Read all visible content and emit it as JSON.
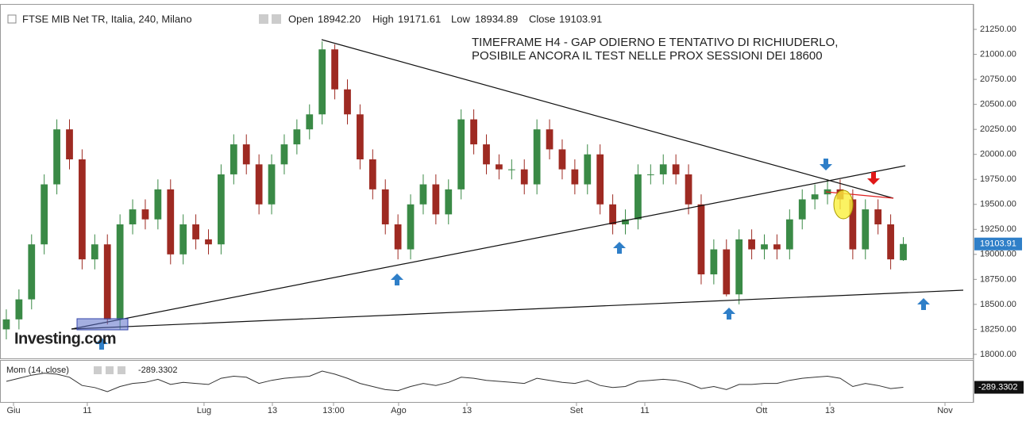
{
  "chart_data": {
    "type": "candlestick",
    "title": "FTSE MIB Net TR, Italia, 240, Milano",
    "header_labels": {
      "open": "Open",
      "high": "High",
      "low": "Low",
      "close": "Close"
    },
    "last_labels": {
      "open": "18942.20",
      "high": "19171.61",
      "low": "18934.89",
      "close": "19103.91"
    },
    "annotation": [
      "TIMEFRAME H4 - GAP ODIERNO E TENTATIVO DI RICHIUDERLO,",
      "POSIBILE ANCORA IL TEST NELLE PROX SESSIONI DEI 18600"
    ],
    "watermark": "Investing.com",
    "up_color": "#3a8a46",
    "down_color": "#9e2a22",
    "open": [
      18250,
      18350,
      18550,
      19100,
      19700,
      20250,
      19950,
      18950,
      19100,
      18350,
      19300,
      19450,
      19350,
      19650,
      19000,
      19300,
      19150,
      19100,
      19800,
      20100,
      19900,
      19500,
      19900,
      20100,
      20250,
      20400,
      21050,
      20650,
      20400,
      19950,
      19650,
      19300,
      19050,
      19500,
      19700,
      19400,
      19650,
      20350,
      20100,
      19900,
      19850,
      19850,
      19700,
      20250,
      20050,
      19850,
      19700,
      20000,
      19500,
      19300,
      19350,
      19800,
      19800,
      19900,
      19800,
      19500,
      18800,
      19050,
      18600,
      19150,
      19050,
      19100,
      19050,
      19350,
      19550,
      19600,
      19650,
      19550,
      19050,
      19450,
      19300,
      18942.2
    ],
    "high": [
      18450,
      18650,
      19200,
      19800,
      20350,
      20350,
      20050,
      19200,
      19200,
      19400,
      19550,
      19550,
      19750,
      19750,
      19400,
      19400,
      19250,
      19900,
      20200,
      20200,
      20000,
      20000,
      20200,
      20350,
      20500,
      21130,
      21100,
      20750,
      20500,
      20050,
      19750,
      19400,
      19600,
      19800,
      19800,
      19750,
      20450,
      20450,
      20200,
      20000,
      19950,
      19950,
      20350,
      20350,
      20150,
      19950,
      20100,
      20100,
      19600,
      19450,
      19900,
      19900,
      20000,
      20000,
      19900,
      19600,
      19150,
      19150,
      19250,
      19250,
      19200,
      19200,
      19450,
      19650,
      19700,
      19750,
      19750,
      19650,
      19550,
      19550,
      19400,
      19171.61
    ],
    "low": [
      18150,
      18250,
      18450,
      19000,
      19600,
      19850,
      18850,
      18850,
      18300,
      18250,
      19200,
      19250,
      19250,
      18900,
      18900,
      19050,
      19000,
      19000,
      19700,
      19800,
      19400,
      19400,
      19800,
      20000,
      20150,
      20300,
      20550,
      20300,
      19850,
      19550,
      19200,
      18950,
      18950,
      19400,
      19300,
      19300,
      19550,
      20000,
      19800,
      19750,
      19750,
      19600,
      19600,
      19950,
      19750,
      19600,
      19600,
      19400,
      19200,
      19200,
      19250,
      19700,
      19700,
      19700,
      19400,
      18700,
      18700,
      18580,
      18500,
      18950,
      18950,
      18950,
      18950,
      19250,
      19450,
      19500,
      19450,
      18950,
      18950,
      19200,
      18850,
      18934.89
    ],
    "close": [
      18350,
      18550,
      19100,
      19700,
      20250,
      19950,
      18950,
      19100,
      18350,
      19300,
      19450,
      19350,
      19650,
      19000,
      19300,
      19150,
      19100,
      19800,
      20100,
      19900,
      19500,
      19900,
      20100,
      20250,
      20400,
      21050,
      20650,
      20400,
      19950,
      19650,
      19300,
      19050,
      19500,
      19700,
      19400,
      19650,
      20350,
      20100,
      19900,
      19850,
      19850,
      19700,
      20250,
      20050,
      19850,
      19700,
      20000,
      19500,
      19300,
      19350,
      19800,
      19800,
      19900,
      19800,
      19500,
      18800,
      19050,
      18600,
      19150,
      19050,
      19100,
      19050,
      19350,
      19550,
      19600,
      19650,
      19550,
      19050,
      19450,
      19300,
      18950,
      19103.91
    ],
    "xlim": [
      -0.5,
      76.5
    ],
    "xticks": [
      {
        "value": 0.57,
        "label": "Giu"
      },
      {
        "value": 6.41,
        "label": "11"
      },
      {
        "value": 15.65,
        "label": "Lug"
      },
      {
        "value": 21.06,
        "label": "13"
      },
      {
        "value": 25.9,
        "label": "13:00"
      },
      {
        "value": 31.05,
        "label": "Ago"
      },
      {
        "value": 36.46,
        "label": "13"
      },
      {
        "value": 45.13,
        "label": "Set"
      },
      {
        "value": 50.54,
        "label": "11"
      },
      {
        "value": 59.78,
        "label": "Ott"
      },
      {
        "value": 65.19,
        "label": "13"
      },
      {
        "value": 74.3,
        "label": "Nov"
      }
    ],
    "ylim": [
      17960,
      21504
    ],
    "yticks": [
      {
        "value": 18000,
        "label": "18000.00"
      },
      {
        "value": 18250,
        "label": "18250.00"
      },
      {
        "value": 18500,
        "label": "18500.00"
      },
      {
        "value": 18750,
        "label": "18750.00"
      },
      {
        "value": 19000,
        "label": "19000.00"
      },
      {
        "value": 19250,
        "label": "19250.00"
      },
      {
        "value": 19500,
        "label": "19500.00"
      },
      {
        "value": 19750,
        "label": "19750.00"
      },
      {
        "value": 20000,
        "label": "20000.00"
      },
      {
        "value": 20250,
        "label": "20250.00"
      },
      {
        "value": 20500,
        "label": "20500.00"
      },
      {
        "value": 20750,
        "label": "20750.00"
      },
      {
        "value": 21000,
        "label": "21000.00"
      },
      {
        "value": 21250,
        "label": "21250.00"
      }
    ],
    "momentum": {
      "name": "Mom (14, close)",
      "color": "#333333",
      "ylim": [
        -1000,
        1000
      ],
      "values": [
        0,
        150,
        300,
        400,
        350,
        200,
        -200,
        -300,
        -500,
        -250,
        -100,
        -50,
        100,
        -150,
        -50,
        -100,
        -150,
        150,
        250,
        200,
        -100,
        50,
        150,
        200,
        250,
        500,
        350,
        150,
        -100,
        -250,
        -400,
        -450,
        -250,
        -100,
        -200,
        -50,
        200,
        150,
        50,
        0,
        -50,
        -100,
        150,
        50,
        -50,
        -100,
        50,
        -200,
        -300,
        -250,
        0,
        50,
        100,
        50,
        -100,
        -350,
        -250,
        -400,
        -150,
        -150,
        -100,
        -100,
        50,
        150,
        200,
        250,
        150,
        -250,
        -100,
        -200,
        -350,
        -289.3302
      ]
    }
  }
}
